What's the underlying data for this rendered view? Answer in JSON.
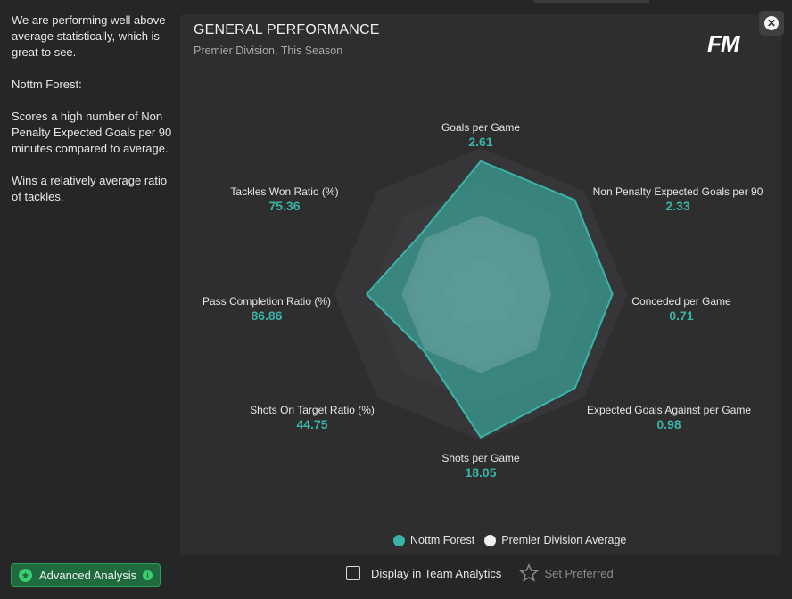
{
  "description": {
    "paragraphs": [
      "We are performing well above average statistically, which is great to see.",
      "Nottm Forest:",
      "Scores a high number of Non Penalty Expected Goals per 90 minutes compared to average.",
      "Wins a relatively average ratio of tackles."
    ]
  },
  "card": {
    "title": "GENERAL PERFORMANCE",
    "subtitle": "Premier Division, This Season",
    "logo": "FM"
  },
  "close_icon": "close-icon",
  "chart_data": {
    "type": "radar",
    "axes": [
      {
        "label": "Goals per Game",
        "value": "2.61"
      },
      {
        "label": "Non Penalty Expected Goals per 90",
        "value": "2.33"
      },
      {
        "label": "Conceded per Game",
        "value": "0.71"
      },
      {
        "label": "Expected Goals Against per Game",
        "value": "0.98"
      },
      {
        "label": "Shots per Game",
        "value": "18.05"
      },
      {
        "label": "Shots On Target Ratio (%)",
        "value": "44.75"
      },
      {
        "label": "Pass Completion Ratio (%)",
        "value": "86.86"
      },
      {
        "label": "Tackles Won Ratio (%)",
        "value": "75.36"
      }
    ],
    "series": [
      {
        "name": "Nottm Forest",
        "color": "#3bb3a8",
        "normalized": [
          0.91,
          0.91,
          0.9,
          0.91,
          0.98,
          0.55,
          0.78,
          0.58
        ]
      },
      {
        "name": "Premier Division Average",
        "color": "#f0f0f0",
        "normalized": [
          0.54,
          0.54,
          0.48,
          0.54,
          0.54,
          0.54,
          0.54,
          0.54
        ]
      }
    ],
    "rings": 4,
    "legend_position": "bottom-center"
  },
  "legend": {
    "team_label": "Nottm Forest",
    "team_color": "#3bb3a8",
    "avg_label": "Premier Division Average",
    "avg_color": "#f0f0f0"
  },
  "footer": {
    "advanced_label": "Advanced Analysis",
    "display_label": "Display in Team Analytics",
    "preferred_label": "Set Preferred"
  }
}
